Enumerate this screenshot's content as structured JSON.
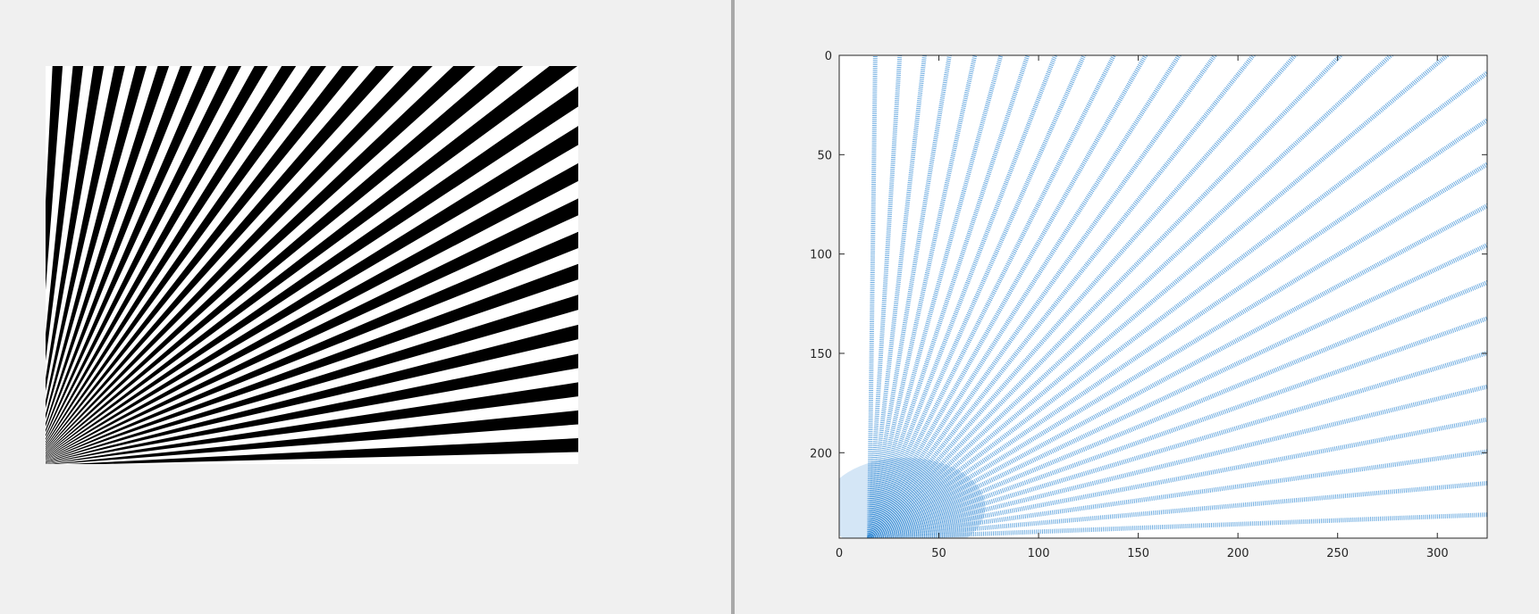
{
  "left_figure": {
    "description_icon": "radial-stripe-pattern",
    "stripe_colors": [
      "#000000",
      "#ffffff"
    ]
  },
  "chart_data": {
    "type": "scatter",
    "title": "",
    "xlabel": "",
    "ylabel": "",
    "xlim": [
      0,
      325
    ],
    "ylim": [
      0,
      243
    ],
    "y_reversed": true,
    "grid": false,
    "xticks": [
      0,
      50,
      100,
      150,
      200,
      250,
      300
    ],
    "yticks": [
      0,
      50,
      100,
      150,
      200
    ],
    "xtick_labels": [
      "0",
      "50",
      "100",
      "150",
      "200",
      "250",
      "300"
    ],
    "ytick_labels": [
      "0",
      "50",
      "100",
      "150",
      "200"
    ],
    "marker_color": "#3b8fd6",
    "series": [
      {
        "pattern_origin": [
          15,
          243
        ]
      }
    ]
  }
}
